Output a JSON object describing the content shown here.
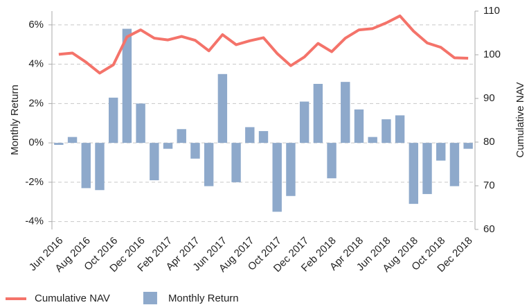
{
  "chart_data": {
    "type": "combo",
    "categories": [
      "Jun 2016",
      null,
      "Aug 2016",
      null,
      "Oct 2016",
      null,
      "Dec 2016",
      null,
      "Feb 2017",
      null,
      "Apr 2017",
      null,
      "Jun 2017",
      null,
      "Aug 2017",
      null,
      "Oct 2017",
      null,
      "Dec 2017",
      null,
      "Feb 2018",
      null,
      "Apr 2018",
      null,
      "Jun 2018",
      null,
      "Aug 2018",
      null,
      "Oct 2018",
      null,
      "Dec 2018"
    ],
    "series": [
      {
        "name": "Cumulative NAV",
        "type": "line",
        "axis": "y2",
        "color": "#f4736a",
        "values": [
          100.1,
          100.4,
          98.3,
          95.8,
          97.7,
          104.1,
          105.7,
          103.8,
          103.4,
          104.2,
          103.3,
          100.9,
          104.6,
          102.3,
          103.2,
          103.9,
          100.3,
          97.5,
          99.5,
          102.6,
          100.7,
          103.8,
          105.7,
          106.0,
          107.3,
          108.9,
          105.4,
          102.7,
          101.7,
          99.3,
          99.2
        ]
      },
      {
        "name": "Monthly Return",
        "type": "bar",
        "color": "#8ea9cb",
        "values": [
          -0.1,
          0.3,
          -2.3,
          -2.4,
          2.3,
          5.8,
          2.0,
          -1.9,
          -0.3,
          0.7,
          -0.8,
          -2.2,
          3.5,
          -2.0,
          0.8,
          0.6,
          -3.5,
          -2.7,
          2.1,
          3.0,
          -1.8,
          3.1,
          1.7,
          0.3,
          1.2,
          1.4,
          -3.1,
          -2.6,
          -0.9,
          -2.2,
          -0.3
        ]
      }
    ],
    "ylabel": "Monthly Return",
    "y2label": "Cumulative NAV",
    "ylim": [
      -4.4,
      6.7
    ],
    "yticks": [
      {
        "value": -4,
        "label": "-4%"
      },
      {
        "value": -2,
        "label": "-2%"
      },
      {
        "value": 0,
        "label": "0%"
      },
      {
        "value": 2,
        "label": "2%"
      },
      {
        "value": 4,
        "label": "4%"
      },
      {
        "value": 6,
        "label": "6%"
      }
    ],
    "y2lim": [
      60,
      110
    ],
    "y2ticks": [
      60,
      70,
      80,
      90,
      100,
      110
    ],
    "grid": true,
    "legend": "bottom-left"
  }
}
